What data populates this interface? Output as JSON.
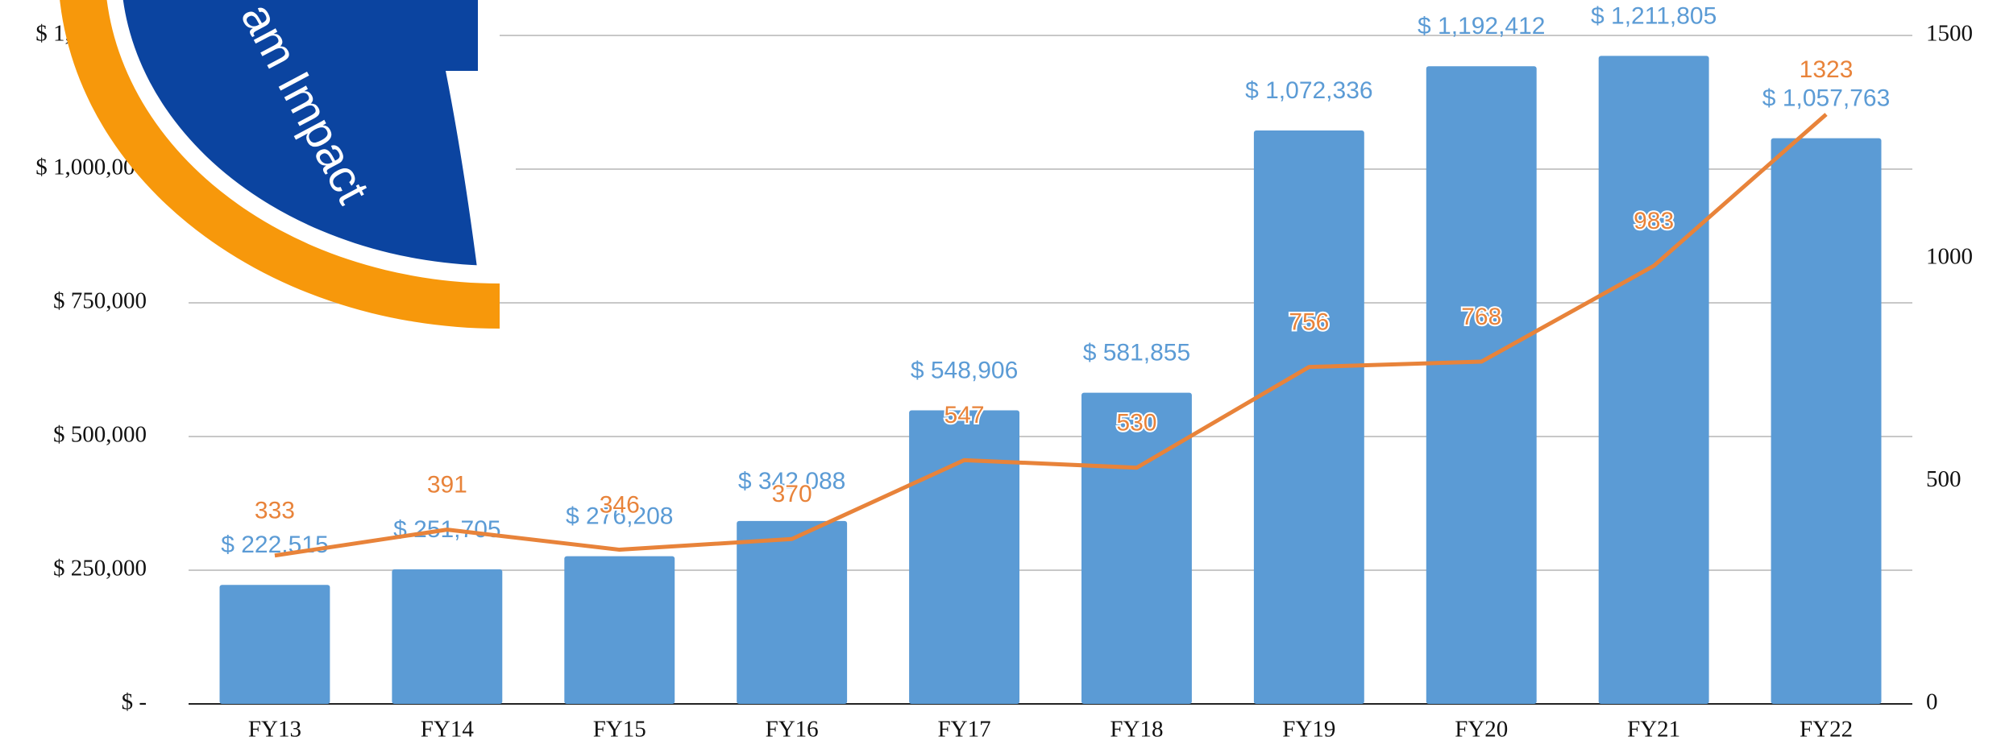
{
  "chart_data": {
    "type": "bar",
    "overlay_text": "am Impact",
    "categories": [
      "FY13",
      "FY14",
      "FY15",
      "FY16",
      "FY17",
      "FY18",
      "FY19",
      "FY20",
      "FY21",
      "FY22"
    ],
    "series": [
      {
        "type": "bar",
        "color": "#5b9bd5",
        "values": [
          222515,
          251705,
          276208,
          342088,
          548906,
          581855,
          1072336,
          1192412,
          1211805,
          1057763
        ],
        "value_labels": [
          "$ 222,515",
          "$ 251,705",
          "$ 276,208",
          "$ 342,088",
          "$ 548,906",
          "$ 581,855",
          "$ 1,072,336",
          "$ 1,192,412",
          "$ 1,211,805",
          "$ 1,057,763"
        ]
      },
      {
        "type": "line",
        "axis": "y2",
        "color": "#e8833a",
        "values": [
          333,
          391,
          346,
          370,
          547,
          530,
          756,
          768,
          983,
          1323
        ]
      }
    ],
    "ylim": [
      0,
      1250000
    ],
    "yticks": [
      {
        "value": 0,
        "label": "$ -"
      },
      {
        "value": 250000,
        "label": "$ 250,000"
      },
      {
        "value": 500000,
        "label": "$ 500,000"
      },
      {
        "value": 750000,
        "label": "$ 750,000"
      },
      {
        "value": 1000000,
        "label": "$ 1,000,000"
      },
      {
        "value": 1250000,
        "label": "$ 1,250,000"
      }
    ],
    "y2lim": [
      0,
      1500
    ],
    "y2ticks": [
      0,
      500,
      1000,
      1500
    ],
    "grid": true
  }
}
